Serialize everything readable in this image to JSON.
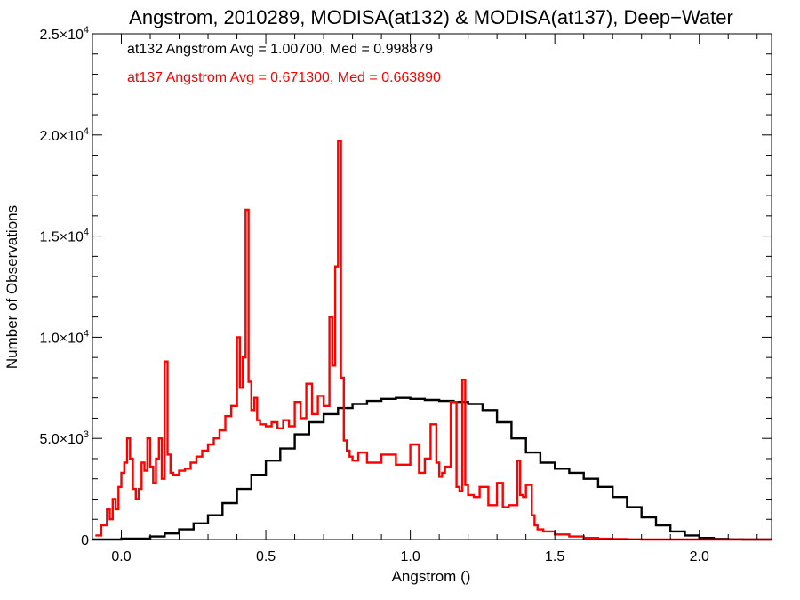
{
  "chart_data": {
    "type": "line",
    "step": true,
    "title": "Angstrom, 2010289, MODISA(at132) & MODISA(at137), Deep−Water",
    "xlabel": "Angstrom ()",
    "ylabel": "Number of Observations",
    "xlim": [
      -0.1,
      2.25
    ],
    "ylim": [
      0,
      25000
    ],
    "x_ticks": [
      {
        "value": 0.0,
        "label": "0.0"
      },
      {
        "value": 0.5,
        "label": "0.5"
      },
      {
        "value": 1.0,
        "label": "1.0"
      },
      {
        "value": 1.5,
        "label": "1.5"
      },
      {
        "value": 2.0,
        "label": "2.0"
      }
    ],
    "y_ticks": [
      {
        "value": 0,
        "label": "0"
      },
      {
        "value": 5000,
        "mantissa": "5.0",
        "exponent": "3"
      },
      {
        "value": 10000,
        "mantissa": "1.0",
        "exponent": "4"
      },
      {
        "value": 15000,
        "mantissa": "1.5",
        "exponent": "4"
      },
      {
        "value": 20000,
        "mantissa": "2.0",
        "exponent": "4"
      },
      {
        "value": 25000,
        "mantissa": "2.5",
        "exponent": "4"
      }
    ],
    "annotations": [
      {
        "text": "at132 Angstrom Avg = 1.00700, Med = 0.998879",
        "color": "#000000"
      },
      {
        "text": "at137 Angstrom Avg = 0.671300, Med = 0.663890",
        "color": "#ff0000"
      }
    ],
    "series": [
      {
        "color": "#000000",
        "x": [
          -0.1,
          0.0,
          0.1,
          0.15,
          0.2,
          0.25,
          0.3,
          0.35,
          0.4,
          0.45,
          0.5,
          0.55,
          0.6,
          0.65,
          0.7,
          0.75,
          0.8,
          0.85,
          0.9,
          0.95,
          1.0,
          1.05,
          1.1,
          1.15,
          1.2,
          1.25,
          1.3,
          1.35,
          1.4,
          1.45,
          1.5,
          1.55,
          1.6,
          1.65,
          1.7,
          1.75,
          1.8,
          1.85,
          1.9,
          1.95,
          2.0,
          2.05,
          2.1,
          2.15,
          2.2,
          2.25
        ],
        "y": [
          0,
          50,
          150,
          300,
          500,
          800,
          1200,
          1800,
          2500,
          3200,
          3900,
          4500,
          5200,
          5800,
          6200,
          6500,
          6700,
          6850,
          6950,
          7000,
          6950,
          6900,
          6850,
          6800,
          6700,
          6400,
          5800,
          5000,
          4300,
          3800,
          3500,
          3300,
          3000,
          2600,
          2100,
          1600,
          1100,
          700,
          400,
          200,
          80,
          30,
          10,
          0,
          0,
          0
        ]
      },
      {
        "color": "#ff0000",
        "x": [
          -0.09,
          -0.07,
          -0.05,
          -0.04,
          -0.03,
          -0.02,
          -0.01,
          0.0,
          0.01,
          0.02,
          0.03,
          0.04,
          0.05,
          0.06,
          0.07,
          0.08,
          0.09,
          0.1,
          0.11,
          0.12,
          0.13,
          0.14,
          0.15,
          0.16,
          0.17,
          0.18,
          0.2,
          0.22,
          0.24,
          0.26,
          0.28,
          0.3,
          0.32,
          0.34,
          0.36,
          0.38,
          0.4,
          0.41,
          0.42,
          0.43,
          0.44,
          0.45,
          0.46,
          0.47,
          0.48,
          0.5,
          0.52,
          0.54,
          0.56,
          0.58,
          0.6,
          0.62,
          0.64,
          0.66,
          0.68,
          0.7,
          0.72,
          0.73,
          0.74,
          0.75,
          0.76,
          0.77,
          0.78,
          0.79,
          0.8,
          0.82,
          0.85,
          0.9,
          0.95,
          1.0,
          1.03,
          1.05,
          1.07,
          1.09,
          1.1,
          1.11,
          1.12,
          1.14,
          1.16,
          1.17,
          1.18,
          1.19,
          1.2,
          1.22,
          1.24,
          1.27,
          1.3,
          1.32,
          1.34,
          1.36,
          1.37,
          1.38,
          1.39,
          1.4,
          1.42,
          1.43,
          1.44,
          1.46,
          1.5,
          1.55,
          1.6,
          1.65,
          1.7,
          1.75,
          1.8,
          1.85,
          2.25
        ],
        "y": [
          200,
          700,
          1500,
          1000,
          2000,
          1500,
          2600,
          3300,
          3800,
          5000,
          4000,
          2500,
          2000,
          2500,
          3800,
          3400,
          5000,
          3600,
          2800,
          4000,
          5000,
          3000,
          8800,
          4200,
          3300,
          3200,
          3400,
          3500,
          3800,
          4100,
          4400,
          4700,
          5000,
          5400,
          6100,
          6600,
          10000,
          7500,
          9000,
          16300,
          7800,
          6400,
          7000,
          5900,
          5700,
          5600,
          5800,
          5500,
          5900,
          5600,
          6800,
          6000,
          7700,
          6200,
          7100,
          6600,
          11000,
          8600,
          13500,
          19700,
          8000,
          4900,
          4400,
          4100,
          3900,
          4300,
          3800,
          4200,
          3700,
          4700,
          3300,
          4000,
          5700,
          3800,
          3100,
          3300,
          3600,
          6800,
          2600,
          2400,
          7900,
          2700,
          2200,
          2100,
          2600,
          1700,
          2800,
          1600,
          1700,
          1700,
          3900,
          2200,
          2100,
          2700,
          1200,
          700,
          500,
          400,
          250,
          150,
          80,
          40,
          20,
          10,
          0,
          0,
          0
        ]
      }
    ]
  }
}
